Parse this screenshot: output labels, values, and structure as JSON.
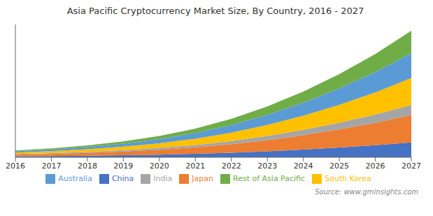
{
  "chart_data": {
    "type": "area",
    "title": "Asia Pacific Cryptocurrency Market Size, By Country, 2016 - 2027",
    "annotation": "Source: www.gminsights.com",
    "x": [
      2016,
      2017,
      2018,
      2019,
      2020,
      2021,
      2022,
      2023,
      2024,
      2025,
      2026,
      2027
    ],
    "series": [
      {
        "name": "China",
        "color": "#4472c4",
        "values": [
          30,
          38,
          50,
          65,
          85,
          110,
          145,
          190,
          245,
          310,
          385,
          470
        ]
      },
      {
        "name": "Japan",
        "color": "#ed7d31",
        "values": [
          55,
          70,
          90,
          118,
          155,
          205,
          270,
          355,
          455,
          575,
          710,
          870
        ]
      },
      {
        "name": "India",
        "color": "#a5a5a5",
        "values": [
          20,
          25,
          33,
          43,
          57,
          75,
          100,
          130,
          168,
          212,
          262,
          320
        ]
      },
      {
        "name": "South Korea",
        "color": "#ffc000",
        "values": [
          45,
          60,
          82,
          110,
          148,
          200,
          268,
          352,
          452,
          568,
          700,
          855
        ]
      },
      {
        "name": "Australia",
        "color": "#5b9bd5",
        "values": [
          40,
          54,
          73,
          99,
          134,
          182,
          245,
          322,
          415,
          523,
          646,
          788
        ]
      },
      {
        "name": "Rest of Asia Pacific",
        "color": "#70ad47",
        "values": [
          25,
          35,
          50,
          70,
          98,
          138,
          192,
          263,
          350,
          453,
          572,
          710
        ]
      }
    ],
    "xlim": [
      2016,
      2027
    ],
    "xticks": [
      2016,
      2017,
      2018,
      2019,
      2020,
      2021,
      2022,
      2023,
      2024,
      2025,
      2026,
      2027
    ],
    "ylim": [
      0,
      4213.65
    ],
    "stacked": true,
    "grid": false,
    "legend": "bottom",
    "tick_labels": "x"
  }
}
